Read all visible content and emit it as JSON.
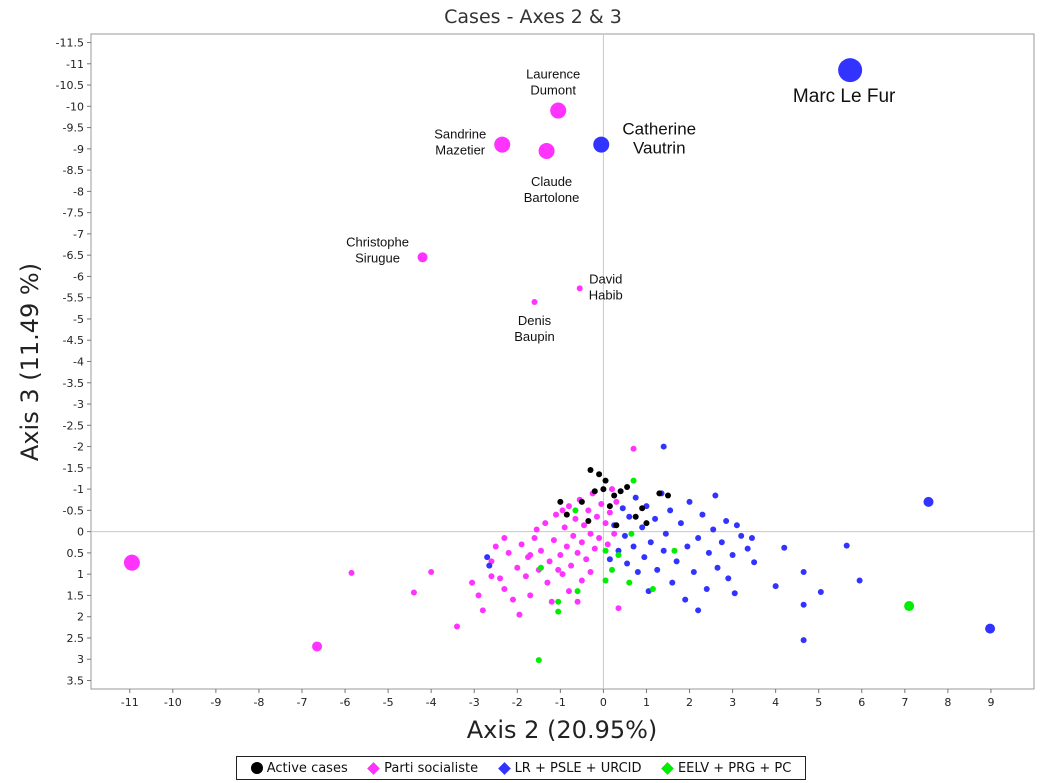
{
  "chart_data": {
    "type": "scatter",
    "title": "Cases - Axes 2 & 3",
    "xlabel": "Axis 2 (20.95%)",
    "ylabel": "Axis 3 (11.49 %)",
    "xlim": [
      -11.9,
      10.0
    ],
    "ylim": [
      3.7,
      -11.7
    ],
    "y_inverted": true,
    "x_ticks": [
      -11,
      -10,
      -9,
      -8,
      -7,
      -6,
      -5,
      -4,
      -3,
      -2,
      -1,
      0,
      1,
      2,
      3,
      4,
      5,
      6,
      7,
      8,
      9
    ],
    "y_ticks": [
      "-11.5",
      "-11",
      "-10.5",
      "-10",
      "-9.5",
      "-9",
      "-8.5",
      "-8",
      "-7.5",
      "-7",
      "-6.5",
      "-6",
      "-5.5",
      "-5",
      "-4.5",
      "-4",
      "-3.5",
      "-3",
      "-2.5",
      "-2",
      "-1.5",
      "-1",
      "-0.5",
      "0",
      "0.5",
      "1",
      "1.5",
      "2",
      "2.5",
      "3",
      "3.5"
    ],
    "legend_position": "bottom",
    "series": [
      {
        "name": "Active cases",
        "color": "#000000"
      },
      {
        "name": "Parti socialiste",
        "color": "#ff33ff"
      },
      {
        "name": "LR + PSLE + URCID",
        "color": "#3333ff"
      },
      {
        "name": "EELV + PRG + PC",
        "color": "#00ee00"
      }
    ],
    "labeled_points": [
      {
        "label": [
          "Marc Le Fur"
        ],
        "x": 5.73,
        "y": -10.85,
        "series": 2,
        "size": 3
      },
      {
        "label": [
          "Laurence",
          "Dumont"
        ],
        "x": -1.05,
        "y": -9.9,
        "series": 1,
        "size": 2
      },
      {
        "label": [
          "Sandrine",
          "Mazetier"
        ],
        "x": -2.35,
        "y": -9.1,
        "series": 1,
        "size": 2
      },
      {
        "label": [
          "Claude",
          "Bartolone"
        ],
        "x": -1.32,
        "y": -8.95,
        "series": 1,
        "size": 2
      },
      {
        "label": [
          "Catherine",
          "Vautrin"
        ],
        "x": -0.05,
        "y": -9.1,
        "series": 2,
        "size": 2
      },
      {
        "label": [
          "Christophe",
          "Sirugue"
        ],
        "x": -4.2,
        "y": -6.45,
        "series": 1,
        "size": 1
      },
      {
        "label": [
          "David",
          "Habib"
        ],
        "x": -0.55,
        "y": -5.72,
        "series": 1,
        "size": 0
      },
      {
        "label": [
          "Denis",
          "Baupin"
        ],
        "x": -1.6,
        "y": -5.4,
        "series": 1,
        "size": 0
      }
    ],
    "points": [
      {
        "x": -10.95,
        "y": 0.73,
        "series": 1,
        "size": 2
      },
      {
        "x": -6.65,
        "y": 2.7,
        "series": 1,
        "size": 1
      },
      {
        "x": -5.85,
        "y": 0.97,
        "series": 1,
        "size": 0
      },
      {
        "x": -4.4,
        "y": 1.43,
        "series": 1,
        "size": 0
      },
      {
        "x": -4.0,
        "y": 0.95,
        "series": 1,
        "size": 0
      },
      {
        "x": -3.4,
        "y": 2.23,
        "series": 1,
        "size": 0
      },
      {
        "x": -3.05,
        "y": 1.2,
        "series": 1,
        "size": 0
      },
      {
        "x": -2.9,
        "y": 1.5,
        "series": 1,
        "size": 0
      },
      {
        "x": -2.8,
        "y": 1.85,
        "series": 1,
        "size": 0
      },
      {
        "x": -2.6,
        "y": 0.7,
        "series": 1,
        "size": 0
      },
      {
        "x": -2.4,
        "y": 1.1,
        "series": 1,
        "size": 0
      },
      {
        "x": -2.3,
        "y": 1.35,
        "series": 1,
        "size": 0
      },
      {
        "x": -2.1,
        "y": 1.6,
        "series": 1,
        "size": 0
      },
      {
        "x": -1.95,
        "y": 1.95,
        "series": 1,
        "size": 0
      },
      {
        "x": -1.8,
        "y": 1.05,
        "series": 1,
        "size": 0
      },
      {
        "x": -1.7,
        "y": 1.5,
        "series": 1,
        "size": 0
      },
      {
        "x": -1.2,
        "y": 1.65,
        "series": 1,
        "size": 0
      },
      {
        "x": -0.6,
        "y": 1.65,
        "series": 1,
        "size": 0
      },
      {
        "x": 0.35,
        "y": 1.8,
        "series": 1,
        "size": 0
      },
      {
        "x": 0.7,
        "y": -1.95,
        "series": 1,
        "size": 0
      },
      {
        "x": -2.5,
        "y": 0.35,
        "series": 1,
        "size": 0
      },
      {
        "x": -2.2,
        "y": 0.5,
        "series": 1,
        "size": 0
      },
      {
        "x": -2.0,
        "y": 0.85,
        "series": 1,
        "size": 0
      },
      {
        "x": -1.9,
        "y": 0.3,
        "series": 1,
        "size": 0
      },
      {
        "x": -1.75,
        "y": 0.6,
        "series": 1,
        "size": 0
      },
      {
        "x": -1.6,
        "y": 0.15,
        "series": 1,
        "size": 0
      },
      {
        "x": -1.5,
        "y": 0.9,
        "series": 1,
        "size": 0
      },
      {
        "x": -1.45,
        "y": 0.45,
        "series": 1,
        "size": 0
      },
      {
        "x": -1.35,
        "y": -0.2,
        "series": 1,
        "size": 0
      },
      {
        "x": -1.3,
        "y": 1.2,
        "series": 1,
        "size": 0
      },
      {
        "x": -1.25,
        "y": 0.7,
        "series": 1,
        "size": 0
      },
      {
        "x": -1.15,
        "y": 0.2,
        "series": 1,
        "size": 0
      },
      {
        "x": -1.1,
        "y": -0.4,
        "series": 1,
        "size": 0
      },
      {
        "x": -1.0,
        "y": 0.55,
        "series": 1,
        "size": 0
      },
      {
        "x": -0.95,
        "y": 1.0,
        "series": 1,
        "size": 0
      },
      {
        "x": -0.9,
        "y": -0.1,
        "series": 1,
        "size": 0
      },
      {
        "x": -0.85,
        "y": 0.35,
        "series": 1,
        "size": 0
      },
      {
        "x": -0.8,
        "y": -0.6,
        "series": 1,
        "size": 0
      },
      {
        "x": -0.75,
        "y": 0.8,
        "series": 1,
        "size": 0
      },
      {
        "x": -0.7,
        "y": 0.1,
        "series": 1,
        "size": 0
      },
      {
        "x": -0.65,
        "y": -0.3,
        "series": 1,
        "size": 0
      },
      {
        "x": -0.6,
        "y": 0.5,
        "series": 1,
        "size": 0
      },
      {
        "x": -0.55,
        "y": -0.75,
        "series": 1,
        "size": 0
      },
      {
        "x": -0.5,
        "y": 0.25,
        "series": 1,
        "size": 0
      },
      {
        "x": -0.45,
        "y": -0.15,
        "series": 1,
        "size": 0
      },
      {
        "x": -0.4,
        "y": 0.65,
        "series": 1,
        "size": 0
      },
      {
        "x": -0.35,
        "y": -0.5,
        "series": 1,
        "size": 0
      },
      {
        "x": -0.3,
        "y": 0.05,
        "series": 1,
        "size": 0
      },
      {
        "x": -0.25,
        "y": -0.9,
        "series": 1,
        "size": 0
      },
      {
        "x": -0.2,
        "y": 0.4,
        "series": 1,
        "size": 0
      },
      {
        "x": -0.15,
        "y": -0.35,
        "series": 1,
        "size": 0
      },
      {
        "x": -0.1,
        "y": 0.15,
        "series": 1,
        "size": 0
      },
      {
        "x": -0.05,
        "y": -0.65,
        "series": 1,
        "size": 0
      },
      {
        "x": 0.05,
        "y": -0.2,
        "series": 1,
        "size": 0
      },
      {
        "x": 0.1,
        "y": 0.3,
        "series": 1,
        "size": 0
      },
      {
        "x": 0.15,
        "y": -0.45,
        "series": 1,
        "size": 0
      },
      {
        "x": 0.2,
        "y": -1.0,
        "series": 1,
        "size": 0
      },
      {
        "x": 0.25,
        "y": 0.05,
        "series": 1,
        "size": 0
      },
      {
        "x": 0.3,
        "y": -0.7,
        "series": 1,
        "size": 0
      },
      {
        "x": -0.95,
        "y": -0.5,
        "series": 1,
        "size": 0
      },
      {
        "x": -1.05,
        "y": 0.9,
        "series": 1,
        "size": 0
      },
      {
        "x": -1.55,
        "y": -0.05,
        "series": 1,
        "size": 0
      },
      {
        "x": -1.7,
        "y": 0.55,
        "series": 1,
        "size": 0
      },
      {
        "x": -2.3,
        "y": 0.15,
        "series": 1,
        "size": 0
      },
      {
        "x": -2.6,
        "y": 1.05,
        "series": 1,
        "size": 0
      },
      {
        "x": -0.5,
        "y": 1.15,
        "series": 1,
        "size": 0
      },
      {
        "x": -0.8,
        "y": 1.4,
        "series": 1,
        "size": 0
      },
      {
        "x": -0.3,
        "y": 0.95,
        "series": 1,
        "size": 0
      },
      {
        "x": 1.4,
        "y": -2.0,
        "series": 2,
        "size": 0
      },
      {
        "x": 7.55,
        "y": -0.7,
        "series": 2,
        "size": 1
      },
      {
        "x": 8.98,
        "y": 2.28,
        "series": 2,
        "size": 1
      },
      {
        "x": 5.65,
        "y": 0.33,
        "series": 2,
        "size": 0
      },
      {
        "x": 5.95,
        "y": 1.15,
        "series": 2,
        "size": 0
      },
      {
        "x": 5.05,
        "y": 1.42,
        "series": 2,
        "size": 0
      },
      {
        "x": 4.65,
        "y": 0.95,
        "series": 2,
        "size": 0
      },
      {
        "x": 4.65,
        "y": 1.72,
        "series": 2,
        "size": 0
      },
      {
        "x": 4.65,
        "y": 2.55,
        "series": 2,
        "size": 0
      },
      {
        "x": 4.2,
        "y": 0.38,
        "series": 2,
        "size": 0
      },
      {
        "x": 4.0,
        "y": 1.28,
        "series": 2,
        "size": 0
      },
      {
        "x": 3.5,
        "y": 0.72,
        "series": 2,
        "size": 0
      },
      {
        "x": 3.35,
        "y": 0.4,
        "series": 2,
        "size": 0
      },
      {
        "x": 3.2,
        "y": 0.1,
        "series": 2,
        "size": 0
      },
      {
        "x": 3.1,
        "y": -0.15,
        "series": 2,
        "size": 0
      },
      {
        "x": 3.0,
        "y": 0.55,
        "series": 2,
        "size": 0
      },
      {
        "x": 2.9,
        "y": 1.1,
        "series": 2,
        "size": 0
      },
      {
        "x": 2.85,
        "y": -0.25,
        "series": 2,
        "size": 0
      },
      {
        "x": 2.75,
        "y": 0.25,
        "series": 2,
        "size": 0
      },
      {
        "x": 2.65,
        "y": 0.85,
        "series": 2,
        "size": 0
      },
      {
        "x": 2.55,
        "y": -0.05,
        "series": 2,
        "size": 0
      },
      {
        "x": 2.45,
        "y": 0.5,
        "series": 2,
        "size": 0
      },
      {
        "x": 2.4,
        "y": 1.35,
        "series": 2,
        "size": 0
      },
      {
        "x": 2.3,
        "y": -0.4,
        "series": 2,
        "size": 0
      },
      {
        "x": 2.2,
        "y": 0.15,
        "series": 2,
        "size": 0
      },
      {
        "x": 2.1,
        "y": 0.95,
        "series": 2,
        "size": 0
      },
      {
        "x": 2.0,
        "y": -0.7,
        "series": 2,
        "size": 0
      },
      {
        "x": 1.95,
        "y": 0.35,
        "series": 2,
        "size": 0
      },
      {
        "x": 1.9,
        "y": 1.6,
        "series": 2,
        "size": 0
      },
      {
        "x": 1.8,
        "y": -0.2,
        "series": 2,
        "size": 0
      },
      {
        "x": 1.7,
        "y": 0.7,
        "series": 2,
        "size": 0
      },
      {
        "x": 1.6,
        "y": 1.2,
        "series": 2,
        "size": 0
      },
      {
        "x": 1.55,
        "y": -0.5,
        "series": 2,
        "size": 0
      },
      {
        "x": 1.45,
        "y": 0.05,
        "series": 2,
        "size": 0
      },
      {
        "x": 1.4,
        "y": 0.45,
        "series": 2,
        "size": 0
      },
      {
        "x": 1.35,
        "y": -0.9,
        "series": 2,
        "size": 0
      },
      {
        "x": 1.25,
        "y": 0.9,
        "series": 2,
        "size": 0
      },
      {
        "x": 1.2,
        "y": -0.3,
        "series": 2,
        "size": 0
      },
      {
        "x": 1.1,
        "y": 0.25,
        "series": 2,
        "size": 0
      },
      {
        "x": 1.05,
        "y": 1.4,
        "series": 2,
        "size": 0
      },
      {
        "x": 1.0,
        "y": -0.6,
        "series": 2,
        "size": 0
      },
      {
        "x": 0.95,
        "y": 0.6,
        "series": 2,
        "size": 0
      },
      {
        "x": 0.9,
        "y": -0.1,
        "series": 2,
        "size": 0
      },
      {
        "x": 0.8,
        "y": 0.95,
        "series": 2,
        "size": 0
      },
      {
        "x": 0.75,
        "y": -0.8,
        "series": 2,
        "size": 0
      },
      {
        "x": 0.7,
        "y": 0.35,
        "series": 2,
        "size": 0
      },
      {
        "x": 0.6,
        "y": -0.35,
        "series": 2,
        "size": 0
      },
      {
        "x": 0.55,
        "y": 0.75,
        "series": 2,
        "size": 0
      },
      {
        "x": 0.5,
        "y": 0.1,
        "series": 2,
        "size": 0
      },
      {
        "x": 0.45,
        "y": -0.55,
        "series": 2,
        "size": 0
      },
      {
        "x": 0.35,
        "y": 0.45,
        "series": 2,
        "size": 0
      },
      {
        "x": 0.25,
        "y": -0.15,
        "series": 2,
        "size": 0
      },
      {
        "x": 0.15,
        "y": 0.65,
        "series": 2,
        "size": 0
      },
      {
        "x": 2.6,
        "y": -0.85,
        "series": 2,
        "size": 0
      },
      {
        "x": 3.05,
        "y": 1.45,
        "series": 2,
        "size": 0
      },
      {
        "x": 3.45,
        "y": 0.15,
        "series": 2,
        "size": 0
      },
      {
        "x": 2.2,
        "y": 1.85,
        "series": 2,
        "size": 0
      },
      {
        "x": -2.7,
        "y": 0.6,
        "series": 2,
        "size": 0
      },
      {
        "x": -2.65,
        "y": 0.8,
        "series": 2,
        "size": 0
      },
      {
        "x": 0.55,
        "y": -1.05,
        "series": 0,
        "size": 0
      },
      {
        "x": -0.3,
        "y": -1.45,
        "series": 0,
        "size": 0
      },
      {
        "x": -0.1,
        "y": -1.35,
        "series": 0,
        "size": 0
      },
      {
        "x": 0.05,
        "y": -1.2,
        "series": 0,
        "size": 0
      },
      {
        "x": -0.2,
        "y": -0.95,
        "series": 0,
        "size": 0
      },
      {
        "x": 0.25,
        "y": -0.85,
        "series": 0,
        "size": 0
      },
      {
        "x": 0.4,
        "y": -0.95,
        "series": 0,
        "size": 0
      },
      {
        "x": 0.15,
        "y": -0.6,
        "series": 0,
        "size": 0
      },
      {
        "x": -0.5,
        "y": -0.7,
        "series": 0,
        "size": 0
      },
      {
        "x": -0.85,
        "y": -0.4,
        "series": 0,
        "size": 0
      },
      {
        "x": 1.3,
        "y": -0.9,
        "series": 0,
        "size": 0
      },
      {
        "x": 1.5,
        "y": -0.85,
        "series": 0,
        "size": 0
      },
      {
        "x": 0.75,
        "y": -0.35,
        "series": 0,
        "size": 0
      },
      {
        "x": 0.9,
        "y": -0.55,
        "series": 0,
        "size": 0
      },
      {
        "x": 1.0,
        "y": -0.2,
        "series": 0,
        "size": 0
      },
      {
        "x": -0.35,
        "y": -0.25,
        "series": 0,
        "size": 0
      },
      {
        "x": 0.3,
        "y": -0.15,
        "series": 0,
        "size": 0
      },
      {
        "x": 0.0,
        "y": -1.0,
        "series": 0,
        "size": 0
      },
      {
        "x": -1.0,
        "y": -0.7,
        "series": 0,
        "size": 0
      },
      {
        "x": 0.7,
        "y": -1.2,
        "series": 3,
        "size": 0
      },
      {
        "x": 7.1,
        "y": 1.75,
        "series": 3,
        "size": 1
      },
      {
        "x": -1.5,
        "y": 3.02,
        "series": 3,
        "size": 0
      },
      {
        "x": -1.05,
        "y": 1.65,
        "series": 3,
        "size": 0
      },
      {
        "x": -1.05,
        "y": 1.88,
        "series": 3,
        "size": 0
      },
      {
        "x": -0.6,
        "y": 1.4,
        "series": 3,
        "size": 0
      },
      {
        "x": 0.05,
        "y": 1.15,
        "series": 3,
        "size": 0
      },
      {
        "x": 0.2,
        "y": 0.9,
        "series": 3,
        "size": 0
      },
      {
        "x": 0.05,
        "y": 0.45,
        "series": 3,
        "size": 0
      },
      {
        "x": 0.35,
        "y": 0.55,
        "series": 3,
        "size": 0
      },
      {
        "x": 1.15,
        "y": 1.35,
        "series": 3,
        "size": 0
      },
      {
        "x": 1.65,
        "y": 0.45,
        "series": 3,
        "size": 0
      },
      {
        "x": 0.65,
        "y": 0.05,
        "series": 3,
        "size": 0
      },
      {
        "x": 0.6,
        "y": 1.2,
        "series": 3,
        "size": 0
      },
      {
        "x": -1.45,
        "y": 0.85,
        "series": 3,
        "size": 0
      },
      {
        "x": -0.65,
        "y": -0.5,
        "series": 3,
        "size": 0
      }
    ]
  }
}
